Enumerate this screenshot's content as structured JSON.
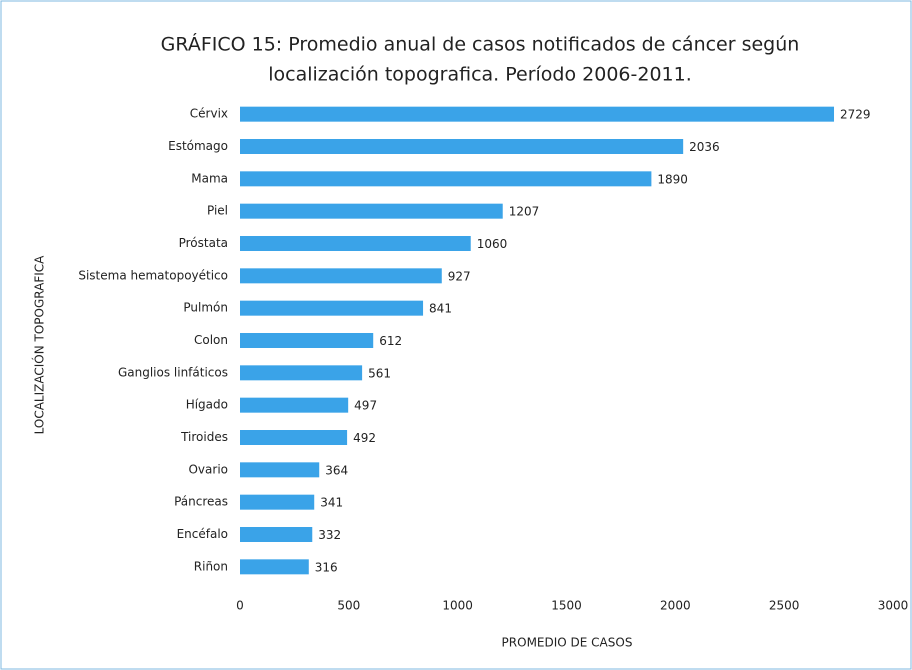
{
  "chart_data": {
    "type": "barh",
    "title": [
      "GRÁFICO 15: Promedio anual de casos notificados de cáncer según",
      "localización topografica. Período 2006-2011."
    ],
    "x_label": "PROMEDIO DE CASOS",
    "y_label": "LOCALIZACIÓN TOPOGRAFICA",
    "categories": [
      "Cérvix",
      "Estómago",
      "Mama",
      "Piel",
      "Próstata",
      "Sistema hematopoyético",
      "Pulmón",
      "Colon",
      "Ganglios linfáticos",
      "Hígado",
      "Tiroides",
      "Ovario",
      "Páncreas",
      "Encéfalo",
      "Riñon"
    ],
    "values": [
      2729,
      2036,
      1890,
      1207,
      1060,
      927,
      841,
      612,
      561,
      497,
      492,
      364,
      341,
      332,
      316
    ],
    "color": "#3aa3e8",
    "xlim": [
      0,
      3000
    ],
    "xticks": [
      0,
      500,
      1000,
      1500,
      2000,
      2500,
      3000
    ],
    "grid": false
  }
}
